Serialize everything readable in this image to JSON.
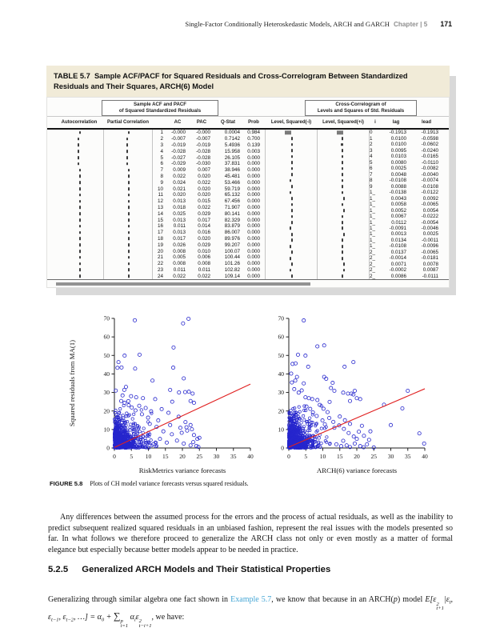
{
  "page": {
    "running_head": "Single-Factor Conditionally Heteroskedastic Models, ARCH and GARCH",
    "chapter_label": "Chapter | 5",
    "page_number": "171"
  },
  "table": {
    "label": "TABLE 5.7",
    "title": "Sample ACF/PACF for Squared Residuals and Cross-Correlogram Between Standardized Residuals and Their Squares, ARCH(6) Model",
    "group_left_line1": "Sample ACF and PACF",
    "group_left_line2": "of Squared Standardized Residuals",
    "group_right_line1": "Cross-Correlogram of",
    "group_right_line2": "Levels and Squares of Std. Residuals",
    "columns": {
      "autocorrelation": "Autocorrelation",
      "partial": "Partial Correlation",
      "ac": "AC",
      "pac": "PAC",
      "q": "Q-Stat",
      "prob": "Prob",
      "lvl_neg": "Level, Squared(-i)",
      "lvl_pos": "Level, Squared(+i)",
      "i": "i",
      "lag": "lag",
      "lead": "lead"
    },
    "acf_rows": [
      [
        "1",
        "-0.000",
        "-0.000",
        "0.0004",
        "0.984"
      ],
      [
        "2",
        "-0.007",
        "-0.007",
        "0.7142",
        "0.700"
      ],
      [
        "3",
        "-0.019",
        "-0.019",
        "5.4936",
        "0.139"
      ],
      [
        "4",
        "-0.028",
        "-0.028",
        "15.958",
        "0.003"
      ],
      [
        "5",
        "-0.027",
        "-0.028",
        "26.105",
        "0.000"
      ],
      [
        "6",
        "-0.029",
        "-0.030",
        "37.831",
        "0.000"
      ],
      [
        "7",
        "0.009",
        "0.007",
        "38.946",
        "0.000"
      ],
      [
        "8",
        "0.022",
        "0.020",
        "45.481",
        "0.000"
      ],
      [
        "9",
        "0.024",
        "0.022",
        "53.466",
        "0.000"
      ],
      [
        "10",
        "0.021",
        "0.020",
        "59.719",
        "0.000"
      ],
      [
        "11",
        "0.020",
        "0.020",
        "65.132",
        "0.000"
      ],
      [
        "12",
        "0.013",
        "0.015",
        "67.456",
        "0.000"
      ],
      [
        "13",
        "0.018",
        "0.022",
        "71.907",
        "0.000"
      ],
      [
        "14",
        "0.025",
        "0.029",
        "80.141",
        "0.000"
      ],
      [
        "15",
        "0.013",
        "0.017",
        "82.329",
        "0.000"
      ],
      [
        "16",
        "0.011",
        "0.014",
        "83.879",
        "0.000"
      ],
      [
        "17",
        "0.013",
        "0.016",
        "86.007",
        "0.000"
      ],
      [
        "18",
        "0.017",
        "0.020",
        "89.976",
        "0.000"
      ],
      [
        "19",
        "0.026",
        "0.029",
        "99.207",
        "0.000"
      ],
      [
        "20",
        "0.008",
        "0.010",
        "100.07",
        "0.000"
      ],
      [
        "21",
        "0.005",
        "0.006",
        "100.44",
        "0.000"
      ],
      [
        "22",
        "0.008",
        "0.008",
        "101.26",
        "0.000"
      ],
      [
        "23",
        "0.011",
        "0.011",
        "102.82",
        "0.000"
      ],
      [
        "24",
        "0.022",
        "0.022",
        "109.14",
        "0.000"
      ]
    ],
    "cross_rows": [
      [
        "0",
        "-0.1913",
        "-0.1913"
      ],
      [
        "1",
        "0.0100",
        "-0.0598"
      ],
      [
        "2",
        "0.0100",
        "-0.0602"
      ],
      [
        "3",
        "0.0095",
        "-0.0240"
      ],
      [
        "4",
        "0.0103",
        "-0.0165"
      ],
      [
        "5",
        "0.0080",
        "-0.0110"
      ],
      [
        "6",
        "0.0025",
        "-0.0082"
      ],
      [
        "7",
        "0.0048",
        "-0.0040"
      ],
      [
        "8",
        "-0.0108",
        "-0.0074"
      ],
      [
        "9",
        "0.0088",
        "-0.0108"
      ],
      [
        "1_",
        "-0.0138",
        "-0.0122"
      ],
      [
        "1_",
        "0.0043",
        "0.0092"
      ],
      [
        "1_",
        "0.0058",
        "-0.0065"
      ],
      [
        "1_",
        "0.0052",
        "0.0054"
      ],
      [
        "1_",
        "0.0067",
        "-0.0222"
      ],
      [
        "1_",
        "0.0112",
        "-0.0054"
      ],
      [
        "1_",
        "-0.0091",
        "-0.0046"
      ],
      [
        "1_",
        "0.0013",
        "0.0025"
      ],
      [
        "1_",
        "0.0134",
        "-0.0011"
      ],
      [
        "1_",
        "-0.0108",
        "-0.0096"
      ],
      [
        "2_",
        "0.0137",
        "-0.0065"
      ],
      [
        "2_",
        "-0.0014",
        "-0.0181"
      ],
      [
        "2_",
        "0.0071",
        "0.0078"
      ],
      [
        "2_",
        "-0.0002",
        "0.0087"
      ],
      [
        "2_",
        "0.0086",
        "-0.0111"
      ]
    ]
  },
  "figure": {
    "label": "FIGURE 5.8",
    "caption": "Plots of CH model variance forecasts versus squared residuals."
  },
  "chart_data": [
    {
      "type": "scatter",
      "xlabel": "RiskMetrics variance forecasts",
      "ylabel": "Squared residuals from MA(1)",
      "xlim": [
        0,
        40
      ],
      "ylim": [
        0,
        70
      ],
      "xticks": [
        0,
        5,
        10,
        15,
        20,
        25,
        30,
        35,
        40
      ],
      "yticks": [
        0,
        10,
        20,
        30,
        40,
        50,
        60,
        70
      ],
      "marker_color": "#2626cd",
      "trend_line": {
        "from": [
          0,
          0.3
        ],
        "to": [
          40,
          34.5
        ],
        "color": "#e02020"
      },
      "points": [
        [
          6,
          69
        ],
        [
          20.2,
          67.3
        ],
        [
          21.8,
          69.8
        ],
        [
          17.4,
          54.3
        ],
        [
          7.4,
          50.4
        ],
        [
          3,
          49.9
        ],
        [
          1.2,
          46.4
        ],
        [
          0.9,
          43.3
        ],
        [
          2.1,
          43.5
        ],
        [
          6.1,
          42.9
        ],
        [
          17.3,
          43.4
        ],
        [
          11.2,
          36.4
        ],
        [
          20.4,
          37.6
        ],
        [
          3.4,
          33
        ],
        [
          0.4,
          31
        ],
        [
          2.9,
          31.4
        ],
        [
          16.4,
          31.4
        ],
        [
          19,
          30
        ],
        [
          20.8,
          30.2
        ],
        [
          21.9,
          30.4
        ],
        [
          23,
          29.4
        ],
        [
          2.4,
          28.4
        ],
        [
          4.9,
          28
        ],
        [
          6.4,
          27.4
        ],
        [
          8.4,
          26.9
        ],
        [
          12,
          26.4
        ],
        [
          17,
          25
        ],
        [
          22.4,
          25.4
        ],
        [
          23.4,
          24.4
        ],
        [
          2,
          25.4
        ],
        [
          3,
          24.4
        ],
        [
          4.1,
          25.3
        ],
        [
          13.9,
          21
        ],
        [
          15.9,
          19
        ],
        [
          18.9,
          16.9
        ],
        [
          20.9,
          14
        ],
        [
          22.4,
          12.4
        ],
        [
          10.4,
          13
        ],
        [
          12.4,
          11.4
        ],
        [
          14.4,
          9
        ],
        [
          16.9,
          7.4
        ],
        [
          19.4,
          10.9
        ],
        [
          21.4,
          9.4
        ],
        [
          23.4,
          7
        ],
        [
          24.4,
          4.9
        ],
        [
          18.4,
          4
        ],
        [
          20.4,
          2.4
        ],
        [
          22.4,
          1.4
        ],
        [
          15.4,
          2.9
        ],
        [
          13.4,
          4.9
        ],
        [
          11.4,
          2
        ],
        [
          16.4,
          12.4
        ],
        [
          21.2,
          11.2
        ],
        [
          22.8,
          10.1
        ],
        [
          19.8,
          8.2
        ],
        [
          23.2,
          3.2
        ],
        [
          24.1,
          1.1
        ],
        [
          12.9,
          14.9
        ],
        [
          9.9,
          16.4
        ],
        [
          8.1,
          18.2
        ],
        [
          6.2,
          20.3
        ],
        [
          5.1,
          21.9
        ],
        [
          4.2,
          23.1
        ],
        [
          7.3,
          22.8
        ],
        [
          9.2,
          21.6
        ],
        [
          10.8,
          19.8
        ],
        [
          25,
          5.5
        ],
        [
          24.7,
          0.6
        ]
      ],
      "dense_cluster": {
        "seed": 42,
        "count": 780,
        "x_scale": 2.6,
        "y_scale": 5.2,
        "x_max": 13,
        "y_max": 23
      }
    },
    {
      "type": "scatter",
      "xlabel": "ARCH(6) variance forecasts",
      "ylabel": "",
      "xlim": [
        0,
        40
      ],
      "ylim": [
        0,
        70
      ],
      "xticks": [
        0,
        5,
        10,
        15,
        20,
        25,
        30,
        35,
        40
      ],
      "yticks": [
        0,
        10,
        20,
        30,
        40,
        50,
        60,
        70
      ],
      "marker_color": "#2626cd",
      "trend_line": {
        "from": [
          0,
          0.5
        ],
        "to": [
          40,
          32
        ],
        "color": "#e02020"
      },
      "points": [
        [
          4.4,
          68.9
        ],
        [
          8.4,
          54.9
        ],
        [
          10.4,
          55.4
        ],
        [
          2.7,
          50.4
        ],
        [
          4.9,
          49.9
        ],
        [
          19,
          46.4
        ],
        [
          1.1,
          45.4
        ],
        [
          2,
          45.7
        ],
        [
          5.7,
          43.9
        ],
        [
          16.4,
          43.9
        ],
        [
          0.7,
          40.2
        ],
        [
          2.4,
          38.4
        ],
        [
          10.4,
          38.4
        ],
        [
          11,
          37.4
        ],
        [
          1.9,
          36.4
        ],
        [
          0.9,
          35.4
        ],
        [
          4.4,
          34.9
        ],
        [
          12.9,
          35.2
        ],
        [
          12.4,
          32.4
        ],
        [
          13.4,
          30.9
        ],
        [
          19.4,
          30.9
        ],
        [
          16,
          29.9
        ],
        [
          17.4,
          29.4
        ],
        [
          18.4,
          29.4
        ],
        [
          19,
          28.9
        ],
        [
          35,
          30.9
        ],
        [
          4.9,
          27.4
        ],
        [
          5.9,
          26.9
        ],
        [
          6.9,
          26.4
        ],
        [
          8.4,
          25.9
        ],
        [
          20,
          26.9
        ],
        [
          21,
          26.4
        ],
        [
          18,
          25.4
        ],
        [
          12,
          24.9
        ],
        [
          28,
          23.4
        ],
        [
          33.4,
          21.4
        ],
        [
          30,
          12.4
        ],
        [
          38.4,
          7.9
        ],
        [
          13.4,
          10.9
        ],
        [
          14,
          2
        ],
        [
          15.4,
          1
        ],
        [
          16,
          3.9
        ],
        [
          17,
          1.4
        ],
        [
          18,
          0.5
        ],
        [
          19.4,
          2.4
        ],
        [
          20,
          4.9
        ],
        [
          21,
          1
        ],
        [
          22,
          0.4
        ],
        [
          23,
          2
        ],
        [
          25,
          0.3
        ],
        [
          39.8,
          2.4
        ],
        [
          9.9,
          14.9
        ],
        [
          8.2,
          17.3
        ],
        [
          7.1,
          19.2
        ],
        [
          6.3,
          21.1
        ],
        [
          5.2,
          22.4
        ],
        [
          10.6,
          12.8
        ],
        [
          11.9,
          16.2
        ],
        [
          13.1,
          14.1
        ],
        [
          14.8,
          12.2
        ],
        [
          16.2,
          10.3
        ],
        [
          17.6,
          8.1
        ],
        [
          19.1,
          6.2
        ],
        [
          20.6,
          8.8
        ],
        [
          22.1,
          6.6
        ],
        [
          23.6,
          4.4
        ],
        [
          9.1,
          23.3
        ],
        [
          10.2,
          21.2
        ],
        [
          11.4,
          19.4
        ],
        [
          2.9,
          29.9
        ],
        [
          1.6,
          31.8
        ],
        [
          3.8,
          31.1
        ],
        [
          15,
          17
        ],
        [
          16.5,
          15
        ],
        [
          18,
          13
        ],
        [
          21.5,
          12
        ],
        [
          24,
          9
        ]
      ],
      "dense_cluster": {
        "seed": 77,
        "count": 780,
        "x_scale": 2.4,
        "y_scale": 5.2,
        "x_max": 13,
        "y_max": 23
      }
    }
  ],
  "text": {
    "para1": "Any differences between the assumed process for the errors and the process of actual residuals, as well as the inability to predict subsequent realized squared residuals in an unbiased fashion, represent the real issues with the models presented so far. In what follows we therefore proceed to generalize the ARCH class not only or even mostly as a matter of formal elegance but especially because better models appear to be needed in practice.",
    "section_number": "5.2.5",
    "section_title": "Generalized ARCH Models and Their Statistical Properties",
    "para2_before_link": "Generalizing through similar algebra one fact shown in ",
    "para2_link": "Example 5.7",
    "para2_mid1": ", we know that because in an ARCH(",
    "para2_p": "p",
    "para2_mid2": ") model ",
    "para2_tail": ", we have:",
    "formula_tokens": [
      {
        "txt": "E[ε"
      },
      {
        "sup": "2",
        "sub": "t+1"
      },
      {
        "txt": "|ε"
      },
      {
        "sub": "t"
      },
      {
        "txt": ", ε"
      },
      {
        "sub": "t−1"
      },
      {
        "txt": ", ε"
      },
      {
        "sub": "t−2"
      },
      {
        "txt": ", …] = α"
      },
      {
        "sub": "0"
      },
      {
        "txt": " + "
      },
      {
        "big": "∑",
        "sup": "p",
        "sub": "i=1"
      },
      {
        "txt": " α"
      },
      {
        "sub": "i"
      },
      {
        "txt": "ε"
      },
      {
        "sup": "2",
        "sub": "t−i+1"
      }
    ]
  }
}
